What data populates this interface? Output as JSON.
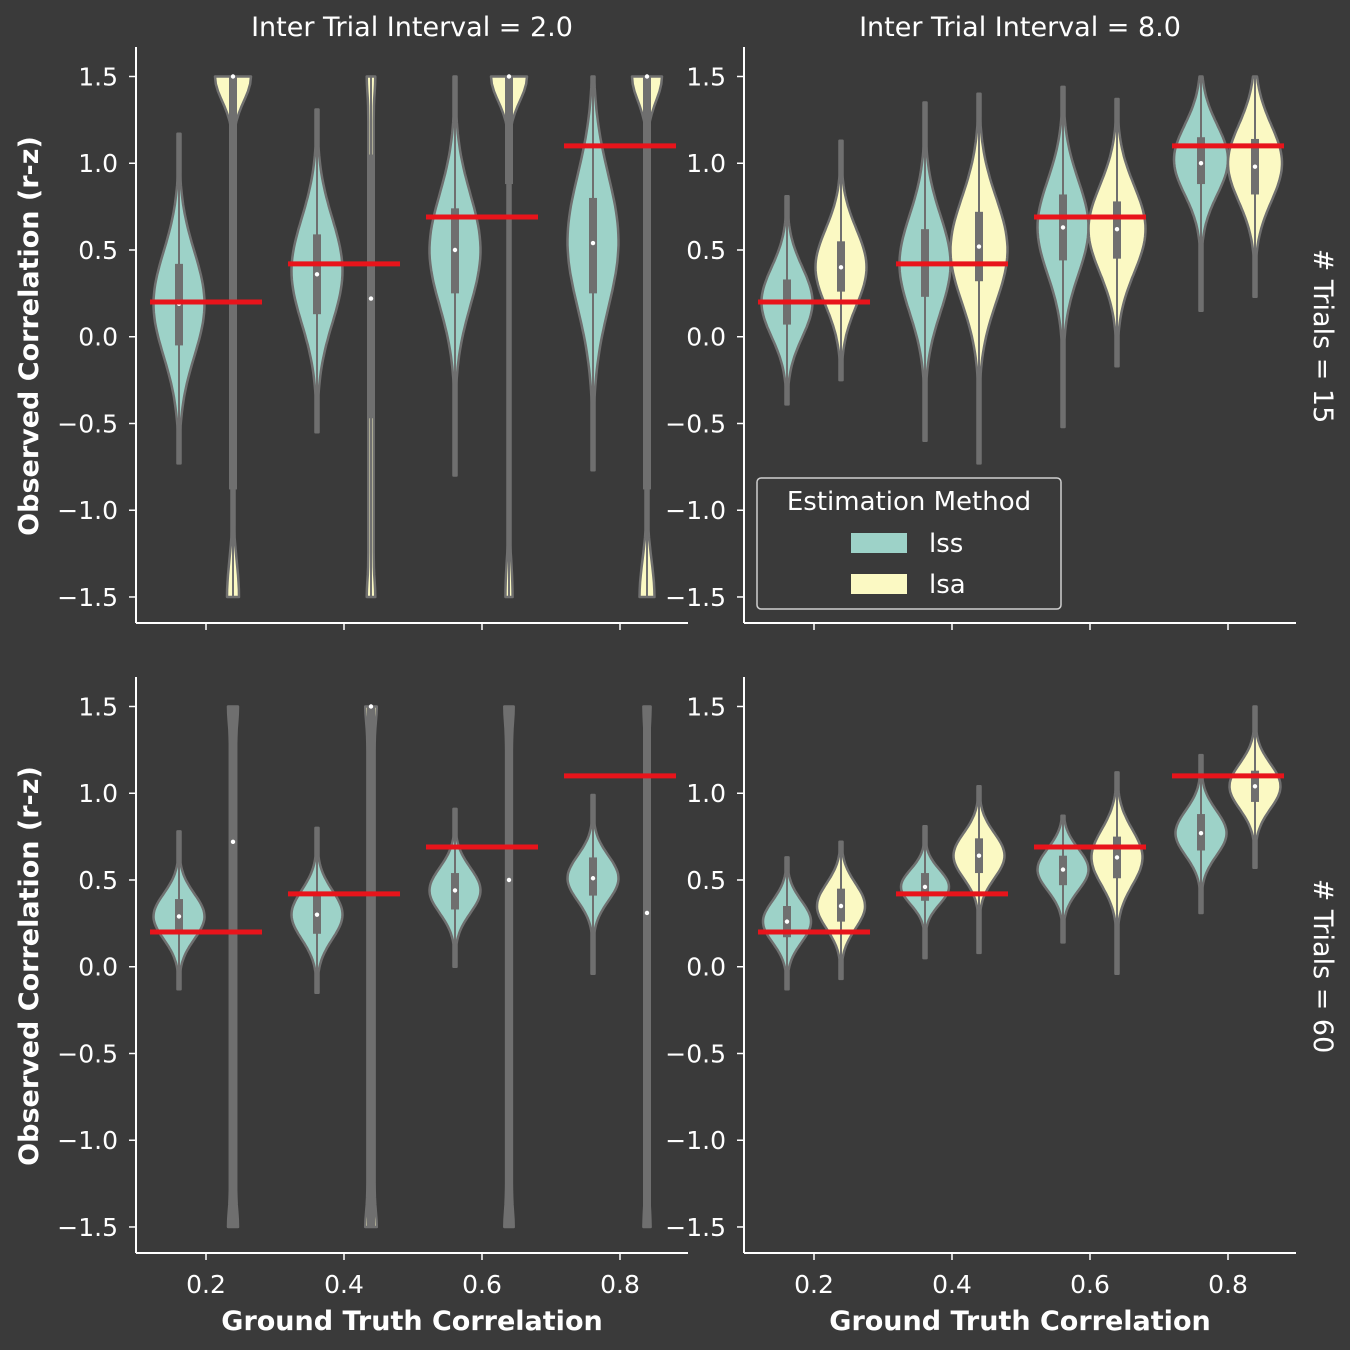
{
  "figure": {
    "col_titles": [
      "Inter Trial Interval = 2.0",
      "Inter Trial Interval = 8.0"
    ],
    "row_titles": [
      "# Trials = 15",
      "# Trials = 60"
    ],
    "xlabel": "Ground Truth Correlation",
    "ylabel": "Observed Correlation (r-z)"
  },
  "legend": {
    "title": "Estimation Method",
    "entries": [
      {
        "label": "lss",
        "color": "#9dd2c8"
      },
      {
        "label": "lsa",
        "color": "#fbf9c3"
      }
    ]
  },
  "colors": {
    "background": "#3a3a3a",
    "axis": "#ffffff",
    "violin_edge": "#6f6f6f",
    "box": "#6f6f6f",
    "truth_line": "#e8141b",
    "lss": "#9dd2c8",
    "lsa": "#fbf9c3"
  },
  "chart_data": {
    "type": "violin",
    "categories": [
      "0.2",
      "0.4",
      "0.6",
      "0.8"
    ],
    "ground_truth_r_z": [
      0.2,
      0.42,
      0.69,
      1.1
    ],
    "ylim": [
      -1.65,
      1.67
    ],
    "yticks": [
      -1.5,
      -1.0,
      -0.5,
      0.0,
      0.5,
      1.0,
      1.5
    ],
    "ytick_labels": [
      "−1.5",
      "−1.0",
      "−0.5",
      "0.0",
      "0.5",
      "1.0",
      "1.5"
    ],
    "panels": [
      {
        "title": "Inter Trial Interval = 2.0",
        "row": "# Trials = 15",
        "series": [
          {
            "name": "lss",
            "violins": [
              {
                "min": -0.73,
                "max": 1.17,
                "q1": -0.05,
                "median": 0.19,
                "q3": 0.42,
                "bulk": 0.19,
                "spread": 0.3,
                "width": 0.85
              },
              {
                "min": -0.55,
                "max": 1.31,
                "q1": 0.13,
                "median": 0.36,
                "q3": 0.59,
                "bulk": 0.38,
                "spread": 0.3,
                "width": 0.85
              },
              {
                "min": -0.8,
                "max": 1.5,
                "q1": 0.25,
                "median": 0.5,
                "q3": 0.74,
                "bulk": 0.5,
                "spread": 0.32,
                "width": 0.85
              },
              {
                "min": -0.77,
                "max": 1.5,
                "q1": 0.25,
                "median": 0.54,
                "q3": 0.8,
                "bulk": 0.55,
                "spread": 0.38,
                "width": 0.85
              }
            ]
          },
          {
            "name": "lsa",
            "violins": [
              {
                "min": -1.5,
                "max": 1.5,
                "q1": -0.88,
                "median": 1.5,
                "q3": 1.5,
                "mode": "bimodal",
                "top_w": 0.6,
                "bottom_w": 0.2
              },
              {
                "min": -1.5,
                "max": 1.5,
                "q1": -0.47,
                "median": 0.22,
                "q3": 1.05,
                "mode": "flat",
                "width": 0.12
              },
              {
                "min": -1.5,
                "max": 1.5,
                "q1": 0.88,
                "median": 1.5,
                "q3": 1.5,
                "mode": "bimodal",
                "top_w": 0.6,
                "bottom_w": 0.12
              },
              {
                "min": -1.5,
                "max": 1.5,
                "q1": -0.88,
                "median": 1.5,
                "q3": 1.5,
                "mode": "bimodal",
                "top_w": 0.5,
                "bottom_w": 0.25
              }
            ]
          }
        ]
      },
      {
        "title": "Inter Trial Interval = 8.0",
        "row": "# Trials = 15",
        "series": [
          {
            "name": "lss",
            "violins": [
              {
                "min": -0.39,
                "max": 0.81,
                "q1": 0.07,
                "median": 0.2,
                "q3": 0.33,
                "bulk": 0.2,
                "spread": 0.2,
                "width": 0.85
              },
              {
                "min": -0.6,
                "max": 1.35,
                "q1": 0.23,
                "median": 0.42,
                "q3": 0.62,
                "bulk": 0.42,
                "spread": 0.28,
                "width": 0.85
              },
              {
                "min": -0.52,
                "max": 1.44,
                "q1": 0.44,
                "median": 0.63,
                "q3": 0.82,
                "bulk": 0.63,
                "spread": 0.27,
                "width": 0.85
              },
              {
                "min": 0.15,
                "max": 1.5,
                "q1": 0.88,
                "median": 1.0,
                "q3": 1.15,
                "bulk": 1.02,
                "spread": 0.2,
                "width": 0.9
              }
            ]
          },
          {
            "name": "lsa",
            "violins": [
              {
                "min": -0.25,
                "max": 1.13,
                "q1": 0.26,
                "median": 0.4,
                "q3": 0.55,
                "bulk": 0.4,
                "spread": 0.22,
                "width": 0.85
              },
              {
                "min": -0.73,
                "max": 1.4,
                "q1": 0.32,
                "median": 0.52,
                "q3": 0.72,
                "bulk": 0.5,
                "spread": 0.3,
                "width": 0.95
              },
              {
                "min": -0.17,
                "max": 1.37,
                "q1": 0.45,
                "median": 0.62,
                "q3": 0.78,
                "bulk": 0.62,
                "spread": 0.25,
                "width": 0.95
              },
              {
                "min": 0.23,
                "max": 1.5,
                "q1": 0.82,
                "median": 0.98,
                "q3": 1.14,
                "bulk": 1.0,
                "spread": 0.22,
                "width": 0.9
              }
            ]
          }
        ]
      },
      {
        "title": "Inter Trial Interval = 2.0",
        "row": "# Trials = 60",
        "series": [
          {
            "name": "lss",
            "violins": [
              {
                "min": -0.13,
                "max": 0.78,
                "q1": 0.2,
                "median": 0.29,
                "q3": 0.39,
                "bulk": 0.29,
                "spread": 0.13,
                "width": 0.85
              },
              {
                "min": -0.15,
                "max": 0.8,
                "q1": 0.19,
                "median": 0.3,
                "q3": 0.42,
                "bulk": 0.3,
                "spread": 0.14,
                "width": 0.85
              },
              {
                "min": 0.0,
                "max": 0.91,
                "q1": 0.33,
                "median": 0.44,
                "q3": 0.54,
                "bulk": 0.44,
                "spread": 0.13,
                "width": 0.85
              },
              {
                "min": -0.04,
                "max": 0.99,
                "q1": 0.41,
                "median": 0.51,
                "q3": 0.63,
                "bulk": 0.51,
                "spread": 0.13,
                "width": 0.85
              }
            ]
          },
          {
            "name": "lsa",
            "violins": [
              {
                "min": -1.5,
                "max": 1.5,
                "q1": -1.5,
                "median": 0.72,
                "q3": 1.5,
                "mode": "flat",
                "width": 0.14
              },
              {
                "min": -1.5,
                "max": 1.5,
                "q1": -1.5,
                "median": 1.5,
                "q3": 1.5,
                "mode": "flat",
                "width": 0.16
              },
              {
                "min": -1.5,
                "max": 1.5,
                "q1": -1.5,
                "median": 0.5,
                "q3": 1.5,
                "mode": "flat",
                "width": 0.13
              },
              {
                "min": -1.5,
                "max": 1.5,
                "q1": -1.5,
                "median": 0.31,
                "q3": 1.5,
                "mode": "flat",
                "width": 0.1
              }
            ]
          }
        ]
      },
      {
        "title": "Inter Trial Interval = 8.0",
        "row": "# Trials = 60",
        "series": [
          {
            "name": "lss",
            "violins": [
              {
                "min": -0.13,
                "max": 0.63,
                "q1": 0.17,
                "median": 0.26,
                "q3": 0.35,
                "bulk": 0.26,
                "spread": 0.12,
                "width": 0.8
              },
              {
                "min": 0.05,
                "max": 0.81,
                "q1": 0.38,
                "median": 0.46,
                "q3": 0.54,
                "bulk": 0.46,
                "spread": 0.1,
                "width": 0.8
              },
              {
                "min": 0.14,
                "max": 0.87,
                "q1": 0.47,
                "median": 0.56,
                "q3": 0.64,
                "bulk": 0.56,
                "spread": 0.12,
                "width": 0.85
              },
              {
                "min": 0.31,
                "max": 1.22,
                "q1": 0.67,
                "median": 0.77,
                "q3": 0.88,
                "bulk": 0.77,
                "spread": 0.13,
                "width": 0.85
              }
            ]
          },
          {
            "name": "lsa",
            "violins": [
              {
                "min": -0.07,
                "max": 0.72,
                "q1": 0.26,
                "median": 0.35,
                "q3": 0.45,
                "bulk": 0.35,
                "spread": 0.13,
                "width": 0.8
              },
              {
                "min": 0.08,
                "max": 1.04,
                "q1": 0.54,
                "median": 0.64,
                "q3": 0.74,
                "bulk": 0.64,
                "spread": 0.13,
                "width": 0.85
              },
              {
                "min": -0.04,
                "max": 1.12,
                "q1": 0.51,
                "median": 0.63,
                "q3": 0.75,
                "bulk": 0.63,
                "spread": 0.16,
                "width": 0.85
              },
              {
                "min": 0.57,
                "max": 1.5,
                "q1": 0.95,
                "median": 1.04,
                "q3": 1.13,
                "bulk": 1.04,
                "spread": 0.13,
                "width": 0.85
              }
            ]
          }
        ]
      }
    ]
  }
}
